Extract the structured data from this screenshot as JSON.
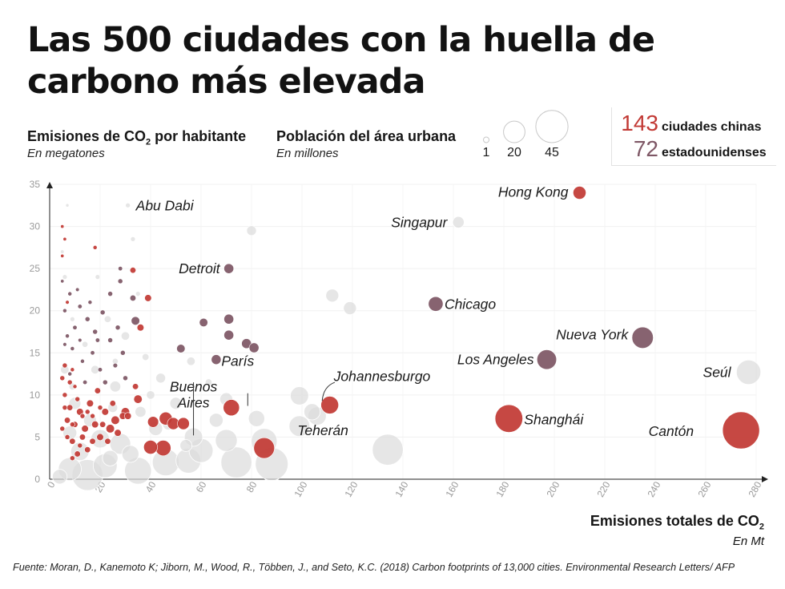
{
  "title": "Las 500 ciudades con la huella de carbono más elevada",
  "y_header": {
    "main": "Emisiones de CO",
    "sub2": "2",
    "rest": " por habitante",
    "unit": "En megatones"
  },
  "pop_header": {
    "main": "Población del área urbana",
    "unit": "En millones"
  },
  "size_legend": [
    {
      "label": "1",
      "value": 1
    },
    {
      "label": "20",
      "value": 20
    },
    {
      "label": "45",
      "value": 45
    }
  ],
  "count_legend": [
    {
      "number": "143",
      "text": "ciudades chinas",
      "color": "#c23a35"
    },
    {
      "number": "72",
      "text": "estadounidenses",
      "color": "#7e5765"
    }
  ],
  "x_header": {
    "main": "Emisiones totales de CO",
    "sub2": "2",
    "unit": "En Mt"
  },
  "source": "Fuente: Moran, D., Kanemoto K; Jiborn, M., Wood, R., Többen, J., and Seto, K.C. (2018) Carbon footprints of 13,000 cities. Environmental Research Letters/ AFP",
  "colors": {
    "china": "#c23a35",
    "usa": "#7e5765",
    "other": "#dcdcdc"
  },
  "chart_data": {
    "type": "scatter",
    "xlim": [
      0,
      280
    ],
    "ylim": [
      0,
      35
    ],
    "x_ticks": [
      0,
      20,
      40,
      60,
      80,
      100,
      120,
      140,
      160,
      180,
      200,
      220,
      240,
      260,
      280
    ],
    "y_ticks": [
      0,
      5,
      10,
      15,
      20,
      25,
      30,
      35
    ],
    "grid": true,
    "labeled_points": [
      {
        "name": "Hong Kong",
        "x": 210,
        "y": 34,
        "pop": 7,
        "group": "china"
      },
      {
        "name": "Singapur",
        "x": 162,
        "y": 30.5,
        "pop": 5.5,
        "group": "other"
      },
      {
        "name": "Abu Dabi",
        "x": 31,
        "y": 32.5,
        "pop": 1,
        "group": "other"
      },
      {
        "name": "Detroit",
        "x": 71,
        "y": 25,
        "pop": 4,
        "group": "usa"
      },
      {
        "name": "Chicago",
        "x": 153,
        "y": 20.8,
        "pop": 9,
        "group": "usa"
      },
      {
        "name": "Nueva York",
        "x": 235,
        "y": 16.8,
        "pop": 19,
        "group": "usa"
      },
      {
        "name": "Los Angeles",
        "x": 197,
        "y": 14.2,
        "pop": 16,
        "group": "usa"
      },
      {
        "name": "Seúl",
        "x": 277,
        "y": 12.7,
        "pop": 25,
        "group": "other"
      },
      {
        "name": "Johannesburgo",
        "x": 111,
        "y": 8.8,
        "pop": 13,
        "group": "china"
      },
      {
        "name": "Buenos Aires",
        "x": 57,
        "y": 5,
        "pop": 14,
        "group": "other"
      },
      {
        "name": "París",
        "x": 72,
        "y": 8.5,
        "pop": 11,
        "group": "china"
      },
      {
        "name": "Teherán",
        "x": 106,
        "y": 7.5,
        "pop": 14,
        "group": "other"
      },
      {
        "name": "Shanghái",
        "x": 182,
        "y": 7.2,
        "pop": 32,
        "group": "china"
      },
      {
        "name": "Cantón",
        "x": 274,
        "y": 5.8,
        "pop": 57,
        "group": "china"
      }
    ],
    "points": [
      {
        "x": 119,
        "y": 20.3,
        "pop": 7,
        "group": "other"
      },
      {
        "x": 112,
        "y": 21.8,
        "pop": 7,
        "group": "other"
      },
      {
        "x": 80,
        "y": 29.5,
        "pop": 4,
        "group": "other"
      },
      {
        "x": 99,
        "y": 9.9,
        "pop": 14,
        "group": "other"
      },
      {
        "x": 104,
        "y": 8,
        "pop": 11,
        "group": "other"
      },
      {
        "x": 99,
        "y": 6.3,
        "pop": 18,
        "group": "other"
      },
      {
        "x": 134,
        "y": 3.5,
        "pop": 40,
        "group": "other"
      },
      {
        "x": 82,
        "y": 7.2,
        "pop": 11,
        "group": "other"
      },
      {
        "x": 85,
        "y": 4.5,
        "pop": 28,
        "group": "other"
      },
      {
        "x": 88,
        "y": 1.8,
        "pop": 45,
        "group": "other"
      },
      {
        "x": 74,
        "y": 2,
        "pop": 40,
        "group": "other"
      },
      {
        "x": 70,
        "y": 4.6,
        "pop": 20,
        "group": "other"
      },
      {
        "x": 70,
        "y": 9.5,
        "pop": 7,
        "group": "other"
      },
      {
        "x": 60,
        "y": 3.4,
        "pop": 24,
        "group": "other"
      },
      {
        "x": 55,
        "y": 2.2,
        "pop": 26,
        "group": "other"
      },
      {
        "x": 46,
        "y": 2,
        "pop": 30,
        "group": "other"
      },
      {
        "x": 35,
        "y": 1,
        "pop": 30,
        "group": "other"
      },
      {
        "x": 22,
        "y": 1.6,
        "pop": 24,
        "group": "other"
      },
      {
        "x": 15,
        "y": 0.5,
        "pop": 40,
        "group": "other"
      },
      {
        "x": 8,
        "y": 1.2,
        "pop": 22,
        "group": "other"
      },
      {
        "x": 28,
        "y": 4.2,
        "pop": 18,
        "group": "other"
      },
      {
        "x": 20,
        "y": 4.8,
        "pop": 14,
        "group": "other"
      },
      {
        "x": 32,
        "y": 3,
        "pop": 12,
        "group": "other"
      },
      {
        "x": 12,
        "y": 3.3,
        "pop": 14,
        "group": "other"
      },
      {
        "x": 42,
        "y": 6,
        "pop": 8,
        "group": "other"
      },
      {
        "x": 50,
        "y": 9,
        "pop": 6,
        "group": "other"
      },
      {
        "x": 44,
        "y": 12,
        "pop": 4,
        "group": "other"
      },
      {
        "x": 26,
        "y": 11,
        "pop": 5,
        "group": "other"
      },
      {
        "x": 18,
        "y": 13,
        "pop": 3,
        "group": "other"
      },
      {
        "x": 10,
        "y": 9,
        "pop": 6,
        "group": "other"
      },
      {
        "x": 6,
        "y": 13,
        "pop": 3,
        "group": "other"
      },
      {
        "x": 30,
        "y": 17,
        "pop": 3,
        "group": "other"
      },
      {
        "x": 23,
        "y": 19,
        "pop": 2,
        "group": "other"
      },
      {
        "x": 33,
        "y": 28.5,
        "pop": 1,
        "group": "other"
      },
      {
        "x": 6,
        "y": 24,
        "pop": 1,
        "group": "other"
      },
      {
        "x": 36,
        "y": 8,
        "pop": 5,
        "group": "other"
      },
      {
        "x": 56,
        "y": 14,
        "pop": 3,
        "group": "other"
      },
      {
        "x": 16,
        "y": 7,
        "pop": 7,
        "group": "other"
      },
      {
        "x": 8,
        "y": 5.5,
        "pop": 8,
        "group": "other"
      },
      {
        "x": 38,
        "y": 14.5,
        "pop": 2,
        "group": "other"
      },
      {
        "x": 14,
        "y": 16,
        "pop": 1.5,
        "group": "other"
      },
      {
        "x": 26,
        "y": 14,
        "pop": 1.5,
        "group": "other"
      },
      {
        "x": 66,
        "y": 7,
        "pop": 8,
        "group": "other"
      },
      {
        "x": 40,
        "y": 10,
        "pop": 3,
        "group": "other"
      },
      {
        "x": 7,
        "y": 32.5,
        "pop": 0.5,
        "group": "other"
      },
      {
        "x": 5,
        "y": 27,
        "pop": 0.6,
        "group": "other"
      },
      {
        "x": 25,
        "y": 8.5,
        "pop": 4,
        "group": "other"
      },
      {
        "x": 9,
        "y": 11,
        "pop": 2,
        "group": "other"
      },
      {
        "x": 47,
        "y": 6.5,
        "pop": 5,
        "group": "other"
      },
      {
        "x": 4,
        "y": 0.3,
        "pop": 9,
        "group": "other"
      },
      {
        "x": 24,
        "y": 2.5,
        "pop": 10,
        "group": "other"
      },
      {
        "x": 54,
        "y": 4,
        "pop": 6,
        "group": "other"
      },
      {
        "x": 63,
        "y": 11.5,
        "pop": 2,
        "group": "other"
      },
      {
        "x": 9,
        "y": 19,
        "pop": 1,
        "group": "other"
      },
      {
        "x": 19,
        "y": 24,
        "pop": 1,
        "group": "other"
      },
      {
        "x": 35,
        "y": 22,
        "pop": 1,
        "group": "other"
      },
      {
        "x": 71,
        "y": 19,
        "pop": 4,
        "group": "usa"
      },
      {
        "x": 71,
        "y": 17.1,
        "pop": 4,
        "group": "usa"
      },
      {
        "x": 78,
        "y": 16.1,
        "pop": 4,
        "group": "usa"
      },
      {
        "x": 81,
        "y": 15.6,
        "pop": 4,
        "group": "usa"
      },
      {
        "x": 61,
        "y": 18.6,
        "pop": 3,
        "group": "usa"
      },
      {
        "x": 66,
        "y": 14.2,
        "pop": 4,
        "group": "usa"
      },
      {
        "x": 52,
        "y": 15.5,
        "pop": 3,
        "group": "usa"
      },
      {
        "x": 34,
        "y": 18.8,
        "pop": 3,
        "group": "usa"
      },
      {
        "x": 33,
        "y": 21.5,
        "pop": 1.5,
        "group": "usa"
      },
      {
        "x": 28,
        "y": 23.5,
        "pop": 1,
        "group": "usa"
      },
      {
        "x": 24,
        "y": 22,
        "pop": 1,
        "group": "usa"
      },
      {
        "x": 21,
        "y": 19.8,
        "pop": 1,
        "group": "usa"
      },
      {
        "x": 18,
        "y": 17.5,
        "pop": 1,
        "group": "usa"
      },
      {
        "x": 15,
        "y": 19,
        "pop": 1,
        "group": "usa"
      },
      {
        "x": 12,
        "y": 20.5,
        "pop": 0.8,
        "group": "usa"
      },
      {
        "x": 10,
        "y": 18,
        "pop": 0.8,
        "group": "usa"
      },
      {
        "x": 8,
        "y": 22,
        "pop": 0.7,
        "group": "usa"
      },
      {
        "x": 6,
        "y": 20,
        "pop": 0.7,
        "group": "usa"
      },
      {
        "x": 7,
        "y": 17,
        "pop": 0.7,
        "group": "usa"
      },
      {
        "x": 9,
        "y": 15.5,
        "pop": 0.7,
        "group": "usa"
      },
      {
        "x": 13,
        "y": 14,
        "pop": 0.7,
        "group": "usa"
      },
      {
        "x": 17,
        "y": 15,
        "pop": 0.8,
        "group": "usa"
      },
      {
        "x": 20,
        "y": 13,
        "pop": 0.8,
        "group": "usa"
      },
      {
        "x": 24,
        "y": 16.5,
        "pop": 1,
        "group": "usa"
      },
      {
        "x": 27,
        "y": 18,
        "pop": 1,
        "group": "usa"
      },
      {
        "x": 29,
        "y": 15,
        "pop": 1,
        "group": "usa"
      },
      {
        "x": 11,
        "y": 22.5,
        "pop": 0.6,
        "group": "usa"
      },
      {
        "x": 5,
        "y": 23.5,
        "pop": 0.5,
        "group": "usa"
      },
      {
        "x": 16,
        "y": 21,
        "pop": 0.7,
        "group": "usa"
      },
      {
        "x": 22,
        "y": 11.5,
        "pop": 1,
        "group": "usa"
      },
      {
        "x": 14,
        "y": 11.5,
        "pop": 0.8,
        "group": "usa"
      },
      {
        "x": 8,
        "y": 12.5,
        "pop": 0.7,
        "group": "usa"
      },
      {
        "x": 19,
        "y": 16.5,
        "pop": 0.8,
        "group": "usa"
      },
      {
        "x": 26,
        "y": 13.5,
        "pop": 0.9,
        "group": "usa"
      },
      {
        "x": 30,
        "y": 12,
        "pop": 1,
        "group": "usa"
      },
      {
        "x": 6,
        "y": 16,
        "pop": 0.6,
        "group": "usa"
      },
      {
        "x": 12,
        "y": 16.5,
        "pop": 0.6,
        "group": "usa"
      },
      {
        "x": 28,
        "y": 25,
        "pop": 0.8,
        "group": "usa"
      },
      {
        "x": 36,
        "y": 18,
        "pop": 2,
        "group": "china"
      },
      {
        "x": 39,
        "y": 21.5,
        "pop": 2,
        "group": "china"
      },
      {
        "x": 33,
        "y": 24.8,
        "pop": 1.5,
        "group": "china"
      },
      {
        "x": 18,
        "y": 27.5,
        "pop": 0.7,
        "group": "china"
      },
      {
        "x": 85,
        "y": 3.7,
        "pop": 18,
        "group": "china"
      },
      {
        "x": 45,
        "y": 3.7,
        "pop": 10,
        "group": "china"
      },
      {
        "x": 40,
        "y": 3.8,
        "pop": 8,
        "group": "china"
      },
      {
        "x": 46,
        "y": 7.2,
        "pop": 7,
        "group": "china"
      },
      {
        "x": 49,
        "y": 6.6,
        "pop": 6,
        "group": "china"
      },
      {
        "x": 53,
        "y": 6.6,
        "pop": 6,
        "group": "china"
      },
      {
        "x": 41,
        "y": 6.8,
        "pop": 5,
        "group": "china"
      },
      {
        "x": 35,
        "y": 9.5,
        "pop": 3,
        "group": "china"
      },
      {
        "x": 30,
        "y": 8,
        "pop": 3,
        "group": "china"
      },
      {
        "x": 26,
        "y": 7,
        "pop": 3,
        "group": "china"
      },
      {
        "x": 24,
        "y": 6,
        "pop": 3,
        "group": "china"
      },
      {
        "x": 22,
        "y": 8,
        "pop": 2,
        "group": "china"
      },
      {
        "x": 20,
        "y": 5,
        "pop": 2,
        "group": "china"
      },
      {
        "x": 18,
        "y": 6.5,
        "pop": 2,
        "group": "china"
      },
      {
        "x": 16,
        "y": 9,
        "pop": 2,
        "group": "china"
      },
      {
        "x": 14,
        "y": 6,
        "pop": 2,
        "group": "china"
      },
      {
        "x": 12,
        "y": 8,
        "pop": 2,
        "group": "china"
      },
      {
        "x": 10,
        "y": 6.5,
        "pop": 1.5,
        "group": "china"
      },
      {
        "x": 8,
        "y": 8.5,
        "pop": 1.5,
        "group": "china"
      },
      {
        "x": 6,
        "y": 10,
        "pop": 1,
        "group": "china"
      },
      {
        "x": 7,
        "y": 7,
        "pop": 1.5,
        "group": "china"
      },
      {
        "x": 9,
        "y": 4.5,
        "pop": 1.5,
        "group": "china"
      },
      {
        "x": 11,
        "y": 3,
        "pop": 1.5,
        "group": "china"
      },
      {
        "x": 13,
        "y": 5,
        "pop": 1.5,
        "group": "china"
      },
      {
        "x": 15,
        "y": 3.5,
        "pop": 1.5,
        "group": "china"
      },
      {
        "x": 17,
        "y": 4.5,
        "pop": 1.5,
        "group": "china"
      },
      {
        "x": 19,
        "y": 10.5,
        "pop": 1.5,
        "group": "china"
      },
      {
        "x": 21,
        "y": 6.5,
        "pop": 1.5,
        "group": "china"
      },
      {
        "x": 23,
        "y": 4.5,
        "pop": 1.5,
        "group": "china"
      },
      {
        "x": 25,
        "y": 9,
        "pop": 1.5,
        "group": "china"
      },
      {
        "x": 27,
        "y": 5.5,
        "pop": 2,
        "group": "china"
      },
      {
        "x": 29,
        "y": 7.5,
        "pop": 2,
        "group": "china"
      },
      {
        "x": 31,
        "y": 7.5,
        "pop": 2,
        "group": "china"
      },
      {
        "x": 5,
        "y": 12,
        "pop": 1,
        "group": "china"
      },
      {
        "x": 6,
        "y": 13.5,
        "pop": 1,
        "group": "china"
      },
      {
        "x": 8,
        "y": 11.5,
        "pop": 1,
        "group": "china"
      },
      {
        "x": 7,
        "y": 5,
        "pop": 1,
        "group": "china"
      },
      {
        "x": 5,
        "y": 6,
        "pop": 1,
        "group": "china"
      },
      {
        "x": 9,
        "y": 2.5,
        "pop": 1,
        "group": "china"
      },
      {
        "x": 11,
        "y": 9.5,
        "pop": 1,
        "group": "china"
      },
      {
        "x": 13,
        "y": 7.5,
        "pop": 1,
        "group": "china"
      },
      {
        "x": 15,
        "y": 8,
        "pop": 1,
        "group": "china"
      },
      {
        "x": 17,
        "y": 7.5,
        "pop": 1,
        "group": "china"
      },
      {
        "x": 20,
        "y": 8.5,
        "pop": 1,
        "group": "china"
      },
      {
        "x": 12,
        "y": 4,
        "pop": 1,
        "group": "china"
      },
      {
        "x": 6,
        "y": 8.5,
        "pop": 1,
        "group": "china"
      },
      {
        "x": 9,
        "y": 6.5,
        "pop": 1,
        "group": "china"
      },
      {
        "x": 5,
        "y": 30,
        "pop": 0.5,
        "group": "china"
      },
      {
        "x": 6,
        "y": 28.5,
        "pop": 0.5,
        "group": "china"
      },
      {
        "x": 5,
        "y": 26.5,
        "pop": 0.5,
        "group": "china"
      },
      {
        "x": 7,
        "y": 21,
        "pop": 0.6,
        "group": "china"
      },
      {
        "x": 9,
        "y": 13,
        "pop": 0.7,
        "group": "china"
      },
      {
        "x": 10,
        "y": 11,
        "pop": 0.7,
        "group": "china"
      },
      {
        "x": 34,
        "y": 11,
        "pop": 1.5,
        "group": "china"
      }
    ]
  }
}
